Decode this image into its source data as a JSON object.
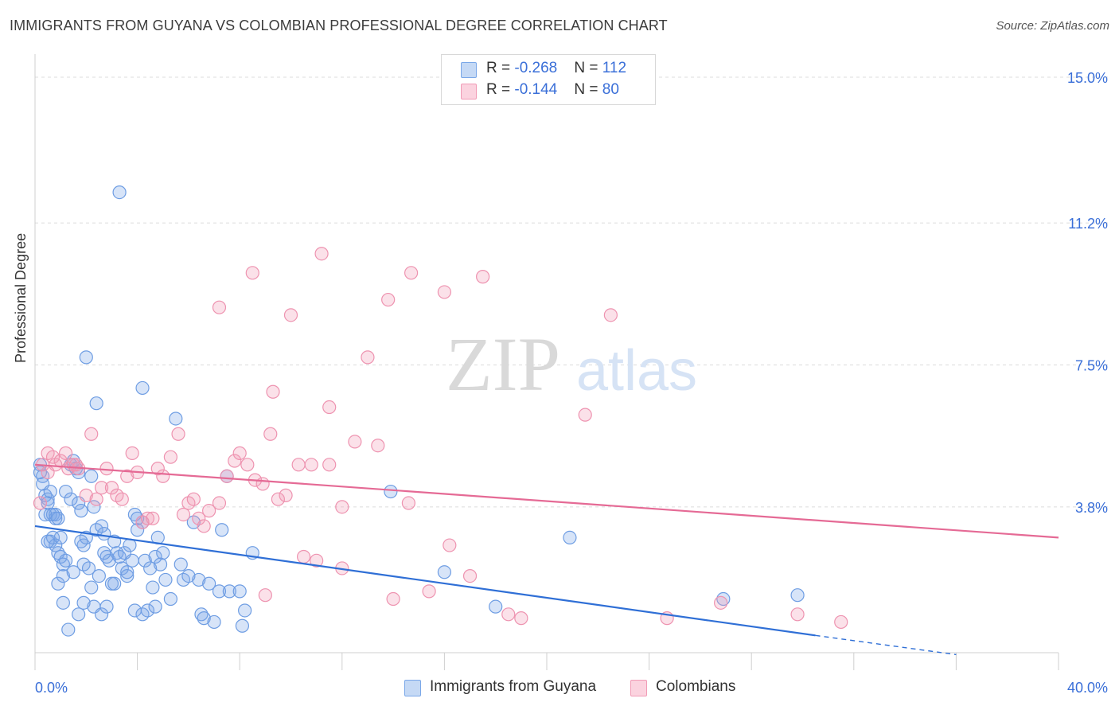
{
  "title": "IMMIGRANTS FROM GUYANA VS COLOMBIAN PROFESSIONAL DEGREE CORRELATION CHART",
  "source": "Source: ZipAtlas.com",
  "watermark": {
    "zip": "ZIP",
    "atlas": "atlas"
  },
  "stats": [
    {
      "r_label": "R = ",
      "r_value": "-0.268",
      "n_label": "N = ",
      "n_value": "112"
    },
    {
      "r_label": "R = ",
      "r_value": "-0.144",
      "n_label": "N = ",
      "n_value": "80"
    }
  ],
  "legend": [
    "Immigrants from Guyana",
    "Colombians"
  ],
  "colors": {
    "blue": "#7aa7e8",
    "blue_line": "#2f6fd6",
    "pink": "#f19bb6",
    "pink_line": "#e56a95",
    "axis_text": "#3a6fd8",
    "grid": "#dcdcdc"
  },
  "chart_data": {
    "type": "scatter",
    "title": "IMMIGRANTS FROM GUYANA VS COLOMBIAN PROFESSIONAL DEGREE CORRELATION CHART",
    "xlabel": "",
    "ylabel": "Professional Degree",
    "xlim": [
      0,
      40
    ],
    "ylim": [
      0,
      15.5
    ],
    "x_tick_labels": [
      "0.0%",
      "40.0%"
    ],
    "y_ticks": [
      3.8,
      7.5,
      11.2,
      15.0
    ],
    "y_tick_labels": [
      "3.8%",
      "7.5%",
      "11.2%",
      "15.0%"
    ],
    "series": [
      {
        "name": "Immigrants from Guyana",
        "color": "#7aa7e8",
        "trend": {
          "x0": 0,
          "y0": 3.3,
          "x1": 30.5,
          "y1": 0.45,
          "dash_to_x": 36,
          "dash_to_y": -0.05
        },
        "points": [
          [
            0.2,
            4.9
          ],
          [
            0.3,
            4.6
          ],
          [
            0.3,
            4.4
          ],
          [
            0.4,
            4.1
          ],
          [
            0.5,
            4.0
          ],
          [
            0.5,
            3.9
          ],
          [
            0.6,
            3.6
          ],
          [
            0.6,
            4.2
          ],
          [
            0.7,
            3.6
          ],
          [
            0.8,
            3.5
          ],
          [
            0.8,
            3.6
          ],
          [
            0.9,
            3.5
          ],
          [
            0.6,
            2.9
          ],
          [
            0.7,
            3.0
          ],
          [
            0.8,
            2.8
          ],
          [
            0.9,
            2.6
          ],
          [
            1.0,
            2.5
          ],
          [
            1.0,
            3.0
          ],
          [
            1.1,
            2.3
          ],
          [
            1.2,
            2.4
          ],
          [
            1.2,
            4.2
          ],
          [
            1.4,
            4.0
          ],
          [
            1.4,
            4.9
          ],
          [
            1.5,
            5.0
          ],
          [
            1.6,
            4.8
          ],
          [
            1.7,
            4.7
          ],
          [
            1.7,
            3.9
          ],
          [
            1.8,
            3.7
          ],
          [
            1.9,
            2.8
          ],
          [
            1.9,
            2.3
          ],
          [
            2.0,
            3.0
          ],
          [
            2.1,
            2.2
          ],
          [
            2.2,
            4.6
          ],
          [
            2.3,
            3.8
          ],
          [
            2.4,
            3.2
          ],
          [
            2.5,
            2.0
          ],
          [
            2.6,
            3.3
          ],
          [
            2.7,
            3.1
          ],
          [
            2.8,
            2.5
          ],
          [
            2.9,
            2.4
          ],
          [
            3.0,
            1.8
          ],
          [
            3.1,
            2.9
          ],
          [
            3.2,
            2.6
          ],
          [
            3.3,
            2.5
          ],
          [
            3.4,
            2.2
          ],
          [
            3.5,
            2.6
          ],
          [
            3.6,
            2.0
          ],
          [
            3.7,
            2.8
          ],
          [
            3.8,
            2.4
          ],
          [
            3.9,
            3.6
          ],
          [
            4.0,
            3.2
          ],
          [
            4.2,
            3.4
          ],
          [
            4.3,
            2.4
          ],
          [
            4.5,
            2.2
          ],
          [
            4.6,
            1.7
          ],
          [
            4.7,
            2.5
          ],
          [
            4.8,
            3.0
          ],
          [
            4.9,
            2.3
          ],
          [
            5.0,
            2.6
          ],
          [
            5.1,
            1.9
          ],
          [
            5.3,
            1.4
          ],
          [
            5.5,
            6.1
          ],
          [
            5.8,
            1.9
          ],
          [
            6.0,
            2.0
          ],
          [
            6.2,
            3.4
          ],
          [
            6.5,
            1.0
          ],
          [
            6.6,
            0.9
          ],
          [
            6.8,
            1.8
          ],
          [
            7.0,
            0.8
          ],
          [
            7.2,
            1.6
          ],
          [
            7.3,
            3.2
          ],
          [
            7.5,
            4.6
          ],
          [
            7.6,
            1.6
          ],
          [
            8.0,
            1.6
          ],
          [
            8.1,
            0.7
          ],
          [
            8.2,
            1.1
          ],
          [
            8.5,
            2.6
          ],
          [
            0.9,
            1.8
          ],
          [
            1.1,
            1.3
          ],
          [
            1.3,
            0.6
          ],
          [
            1.7,
            1.0
          ],
          [
            1.9,
            1.3
          ],
          [
            2.3,
            1.2
          ],
          [
            2.6,
            1.0
          ],
          [
            2.8,
            1.2
          ],
          [
            3.9,
            1.1
          ],
          [
            4.2,
            1.0
          ],
          [
            4.4,
            1.1
          ],
          [
            4.7,
            1.2
          ],
          [
            3.3,
            12.0
          ],
          [
            4.2,
            6.9
          ],
          [
            2.0,
            7.7
          ],
          [
            2.4,
            6.5
          ],
          [
            1.8,
            2.9
          ],
          [
            2.7,
            2.6
          ],
          [
            3.6,
            2.1
          ],
          [
            1.1,
            2.0
          ],
          [
            0.2,
            4.7
          ],
          [
            13.9,
            4.2
          ],
          [
            16.0,
            2.1
          ],
          [
            20.9,
            3.0
          ],
          [
            18.0,
            1.2
          ],
          [
            26.9,
            1.4
          ],
          [
            29.8,
            1.5
          ],
          [
            0.4,
            3.6
          ],
          [
            0.5,
            2.9
          ],
          [
            1.5,
            2.1
          ],
          [
            2.2,
            1.7
          ],
          [
            3.1,
            1.8
          ],
          [
            4.0,
            3.5
          ],
          [
            5.7,
            2.3
          ],
          [
            6.4,
            1.9
          ]
        ]
      },
      {
        "name": "Colombians",
        "color": "#f19bb6",
        "trend": {
          "x0": 0,
          "y0": 4.9,
          "x1": 40,
          "y1": 3.0
        },
        "points": [
          [
            0.2,
            3.9
          ],
          [
            0.3,
            4.9
          ],
          [
            0.5,
            5.2
          ],
          [
            0.7,
            5.1
          ],
          [
            0.8,
            4.9
          ],
          [
            1.0,
            5.0
          ],
          [
            1.2,
            5.2
          ],
          [
            1.3,
            4.8
          ],
          [
            1.5,
            4.9
          ],
          [
            1.7,
            4.8
          ],
          [
            2.0,
            4.1
          ],
          [
            2.2,
            5.7
          ],
          [
            2.4,
            4.0
          ],
          [
            2.6,
            4.3
          ],
          [
            2.8,
            4.8
          ],
          [
            3.0,
            4.3
          ],
          [
            3.2,
            4.1
          ],
          [
            3.4,
            4.0
          ],
          [
            3.6,
            4.6
          ],
          [
            3.8,
            5.2
          ],
          [
            4.0,
            4.7
          ],
          [
            4.2,
            3.4
          ],
          [
            4.4,
            3.5
          ],
          [
            4.6,
            3.5
          ],
          [
            4.8,
            4.8
          ],
          [
            5.0,
            4.6
          ],
          [
            5.3,
            5.1
          ],
          [
            5.6,
            5.7
          ],
          [
            5.8,
            3.6
          ],
          [
            6.0,
            3.9
          ],
          [
            6.2,
            4.0
          ],
          [
            6.4,
            3.5
          ],
          [
            6.6,
            3.3
          ],
          [
            6.8,
            3.7
          ],
          [
            7.2,
            3.9
          ],
          [
            7.5,
            4.6
          ],
          [
            7.8,
            5.0
          ],
          [
            8.0,
            5.2
          ],
          [
            8.3,
            4.9
          ],
          [
            8.6,
            4.5
          ],
          [
            8.9,
            4.4
          ],
          [
            9.2,
            5.7
          ],
          [
            9.5,
            4.0
          ],
          [
            9.8,
            4.1
          ],
          [
            10.3,
            4.9
          ],
          [
            10.8,
            4.9
          ],
          [
            11.5,
            4.9
          ],
          [
            12.0,
            3.8
          ],
          [
            12.5,
            5.5
          ],
          [
            13.4,
            5.4
          ],
          [
            12.0,
            2.2
          ],
          [
            11.0,
            2.4
          ],
          [
            10.5,
            2.5
          ],
          [
            9.0,
            1.5
          ],
          [
            8.5,
            9.9
          ],
          [
            7.2,
            9.0
          ],
          [
            10.0,
            8.8
          ],
          [
            11.2,
            10.4
          ],
          [
            13.0,
            7.7
          ],
          [
            13.8,
            9.2
          ],
          [
            14.7,
            9.9
          ],
          [
            16.0,
            9.4
          ],
          [
            17.5,
            9.8
          ],
          [
            21.5,
            6.2
          ],
          [
            22.5,
            8.8
          ],
          [
            9.3,
            6.8
          ],
          [
            11.5,
            6.4
          ],
          [
            16.2,
            2.8
          ],
          [
            17.0,
            2.0
          ],
          [
            15.4,
            1.6
          ],
          [
            14.0,
            1.4
          ],
          [
            18.5,
            1.0
          ],
          [
            19.0,
            0.9
          ],
          [
            24.7,
            0.9
          ],
          [
            26.8,
            1.3
          ],
          [
            29.8,
            1.0
          ],
          [
            31.5,
            0.8
          ],
          [
            14.6,
            3.9
          ],
          [
            0.5,
            4.7
          ],
          [
            1.6,
            4.9
          ]
        ]
      }
    ]
  }
}
